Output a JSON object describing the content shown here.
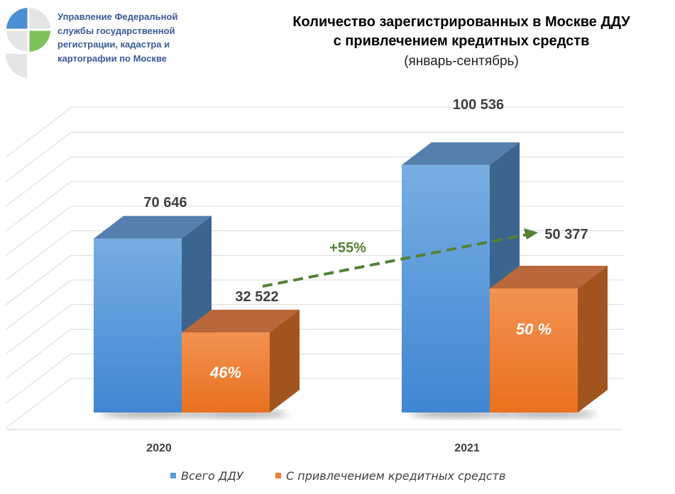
{
  "organization": {
    "lines": [
      "Управление Федеральной",
      "службы государственной",
      "регистрации, кадастра и",
      "картографии по Москве"
    ]
  },
  "chart_data": {
    "type": "bar",
    "title": [
      "Количество зарегистрированных в Москве ДДУ",
      "с привлечением кредитных средств"
    ],
    "subtitle": "(январь-сентябрь)",
    "categories": [
      "2020",
      "2021"
    ],
    "ylim": [
      0,
      110000
    ],
    "grid": true,
    "legend_position": "bottom",
    "series": [
      {
        "name": "Всего ДДУ",
        "values": [
          70646,
          100536
        ],
        "labels": [
          "70 646",
          "100 536"
        ],
        "color": "#5b9bd5"
      },
      {
        "name": "С привлечением кредитных средств",
        "values": [
          32522,
          50377
        ],
        "labels": [
          "32 522",
          "50 377"
        ],
        "share_labels": [
          "46%",
          "50 %"
        ],
        "color": "#ed7d31"
      }
    ],
    "annotations": [
      {
        "text": "+55%",
        "from_category": "2020",
        "to_category": "2021",
        "series": "С привлечением кредитных средств",
        "color": "#548235"
      }
    ]
  }
}
